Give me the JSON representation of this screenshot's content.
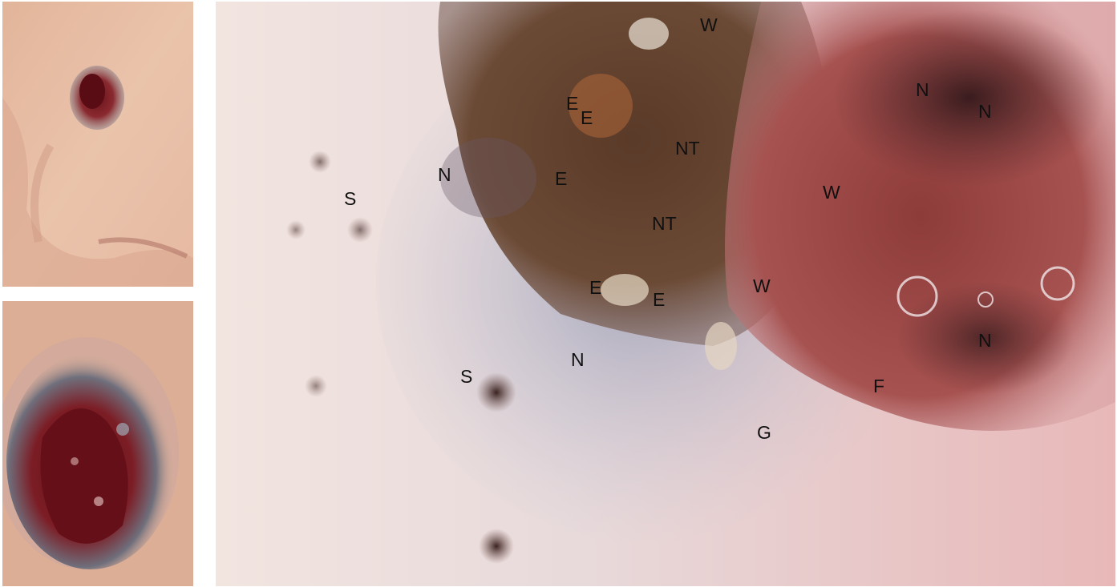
{
  "annotations": {
    "W_top": "W",
    "N_top1": "N",
    "N_top2": "N",
    "E1": "E",
    "E2": "E",
    "E3": "E",
    "NT1": "NT",
    "W_mid": "W",
    "S1": "S",
    "N_left": "N",
    "NT2": "NT",
    "E4": "E",
    "E5": "E",
    "W_low": "W",
    "N_right": "N",
    "S2": "S",
    "N_bottom": "N",
    "F": "F",
    "G": "G"
  }
}
